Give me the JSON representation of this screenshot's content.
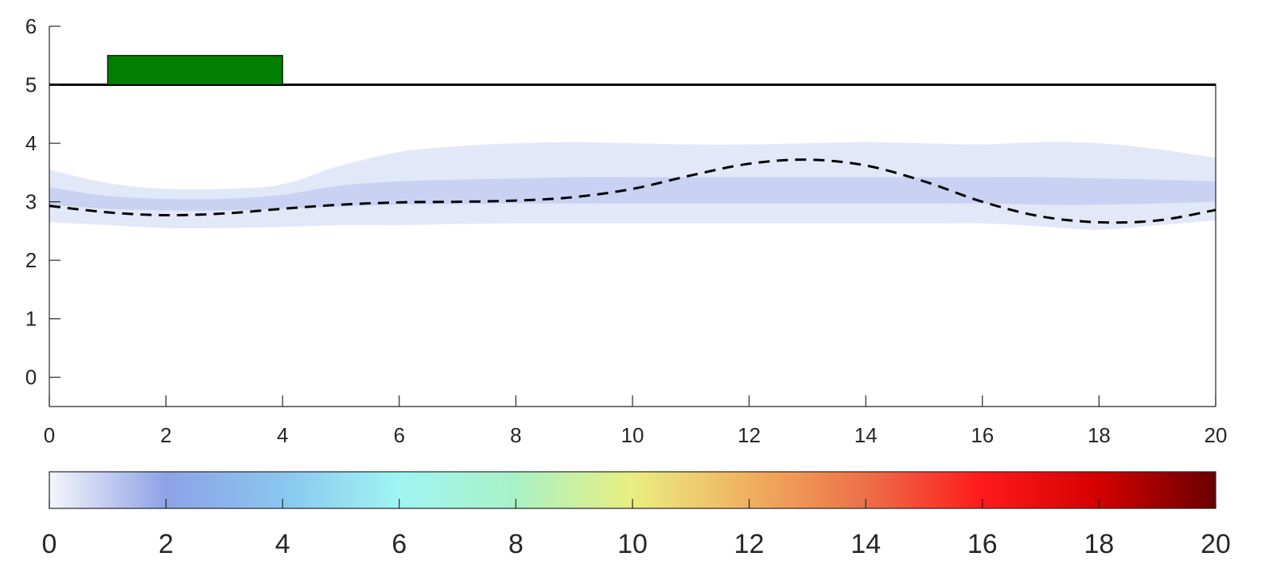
{
  "chart_data": [
    {
      "type": "line",
      "title": "",
      "xlabel": "",
      "ylabel": "",
      "xlim": [
        0,
        20
      ],
      "ylim": [
        -0.5,
        6
      ],
      "xticks": [
        "0",
        "2",
        "4",
        "6",
        "8",
        "10",
        "12",
        "14",
        "16",
        "18",
        "20"
      ],
      "yticks": [
        "0",
        "1",
        "2",
        "3",
        "4",
        "5",
        "6"
      ],
      "grid": false,
      "series": [
        {
          "style": "dashed",
          "color": "#000000",
          "x": [
            0,
            1,
            2,
            3,
            4,
            5,
            6,
            7,
            8,
            9,
            10,
            11,
            12,
            13,
            14,
            15,
            16,
            17,
            18,
            19,
            20
          ],
          "y": [
            2.93,
            2.82,
            2.77,
            2.8,
            2.88,
            2.95,
            2.99,
            3.0,
            3.02,
            3.08,
            3.22,
            3.45,
            3.65,
            3.72,
            3.62,
            3.35,
            3.0,
            2.75,
            2.65,
            2.68,
            2.86
          ]
        }
      ],
      "plume_band": {
        "fill": "#a9b8ec",
        "x": [
          0,
          1,
          2,
          3,
          4,
          5,
          6,
          7,
          8,
          9,
          10,
          11,
          12,
          13,
          14,
          15,
          16,
          17,
          18,
          19,
          20
        ],
        "upper": [
          3.55,
          3.32,
          3.22,
          3.22,
          3.3,
          3.62,
          3.85,
          3.95,
          4.0,
          4.02,
          4.0,
          3.98,
          3.98,
          4.0,
          4.02,
          4.0,
          3.98,
          4.02,
          4.0,
          3.9,
          3.75
        ],
        "lower": [
          2.65,
          2.6,
          2.55,
          2.55,
          2.57,
          2.6,
          2.6,
          2.62,
          2.63,
          2.63,
          2.63,
          2.63,
          2.63,
          2.63,
          2.63,
          2.63,
          2.63,
          2.58,
          2.52,
          2.6,
          2.68
        ],
        "core_upper": [
          3.25,
          3.1,
          3.05,
          3.05,
          3.12,
          3.28,
          3.35,
          3.38,
          3.4,
          3.42,
          3.42,
          3.42,
          3.42,
          3.42,
          3.42,
          3.42,
          3.42,
          3.42,
          3.4,
          3.38,
          3.35
        ],
        "core_lower": [
          2.95,
          2.88,
          2.85,
          2.85,
          2.88,
          2.92,
          2.95,
          2.96,
          2.97,
          2.97,
          2.97,
          2.97,
          2.97,
          2.97,
          2.97,
          2.97,
          2.97,
          2.95,
          2.95,
          2.97,
          3.0
        ]
      },
      "surface_line": {
        "y": 5,
        "x": [
          0,
          20
        ],
        "color": "#000000"
      },
      "source_block": {
        "x": [
          1,
          4
        ],
        "y": [
          5,
          5.5
        ],
        "color": "#007f00"
      }
    },
    {
      "type": "heatmap",
      "role": "colorbar",
      "range": [
        0,
        20
      ],
      "ticks": [
        "0",
        "2",
        "4",
        "6",
        "8",
        "10",
        "12",
        "14",
        "16",
        "18",
        "20"
      ],
      "colors": [
        "#f5f5fb",
        "#8ea2e6",
        "#89c6ef",
        "#9ef5f2",
        "#a9f1c6",
        "#e9ee80",
        "#f0b060",
        "#ec7048",
        "#ff1a1a",
        "#d40000",
        "#690000"
      ]
    }
  ]
}
